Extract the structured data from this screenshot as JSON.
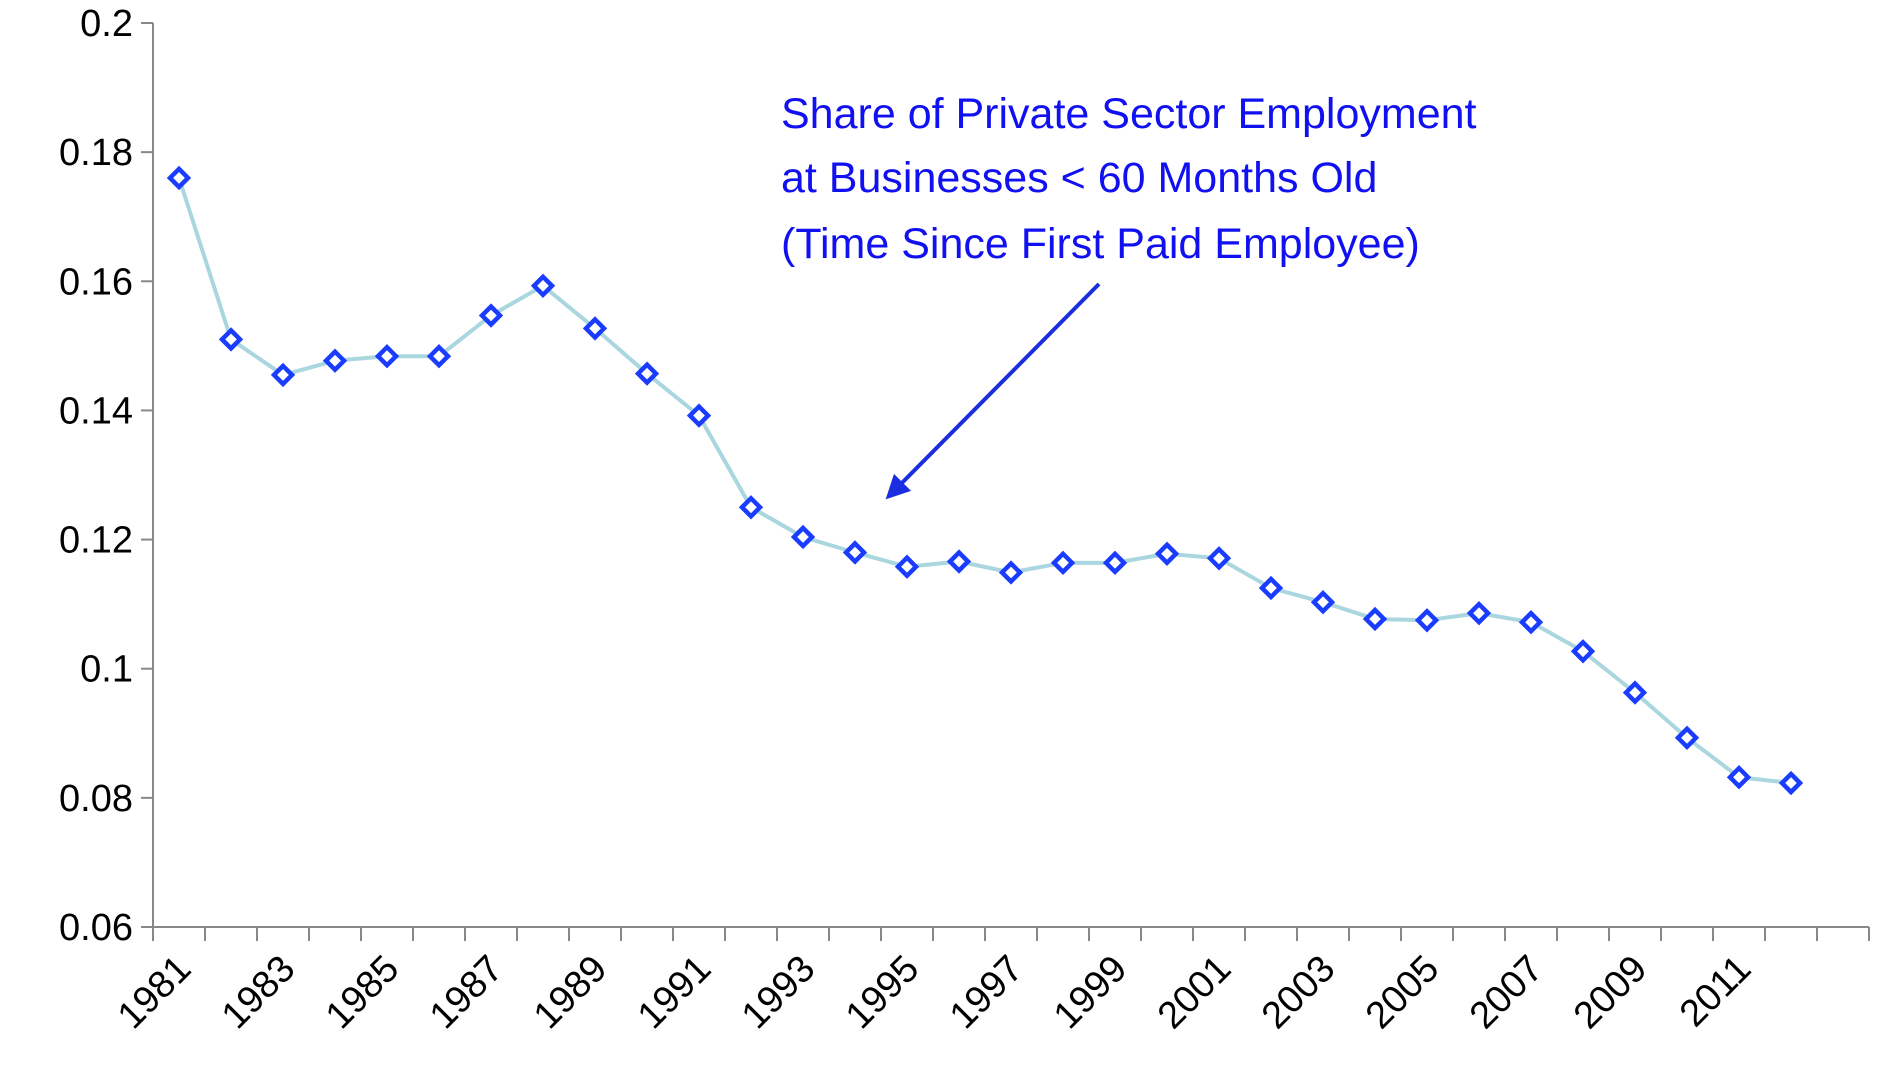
{
  "chart_data": {
    "type": "line",
    "annotation": [
      "Share of Private Sector Employment",
      "at Businesses < 60 Months Old",
      "(Time Since First Paid Employee)"
    ],
    "categories": [
      "1981",
      null,
      "1983",
      null,
      "1985",
      null,
      "1987",
      null,
      "1989",
      null,
      "1991",
      null,
      "1993",
      null,
      "1995",
      null,
      "1997",
      null,
      "1999",
      null,
      "2001",
      null,
      "2003",
      null,
      "2005",
      null,
      "2007",
      null,
      "2009",
      null,
      "2011",
      null
    ],
    "series": [
      {
        "color": "#1a3cff",
        "line_color": "#a9d6df",
        "values": [
          0.176,
          0.151,
          0.1455,
          0.1477,
          0.1484,
          0.1484,
          0.1547,
          0.1593,
          0.1527,
          0.1457,
          0.1392,
          0.125,
          0.1204,
          0.118,
          0.1158,
          0.1166,
          0.1149,
          0.1164,
          0.1164,
          0.1178,
          0.1171,
          0.1125,
          0.1103,
          0.1077,
          0.1075,
          0.1086,
          0.1072,
          0.1027,
          0.0963,
          0.0893,
          0.0832,
          0.0823
        ]
      }
    ],
    "ylim": [
      0.06,
      0.2
    ],
    "yticks": [
      0.06,
      0.08,
      0.1,
      0.12,
      0.14,
      0.16,
      0.18,
      0.2
    ],
    "grid": false
  }
}
